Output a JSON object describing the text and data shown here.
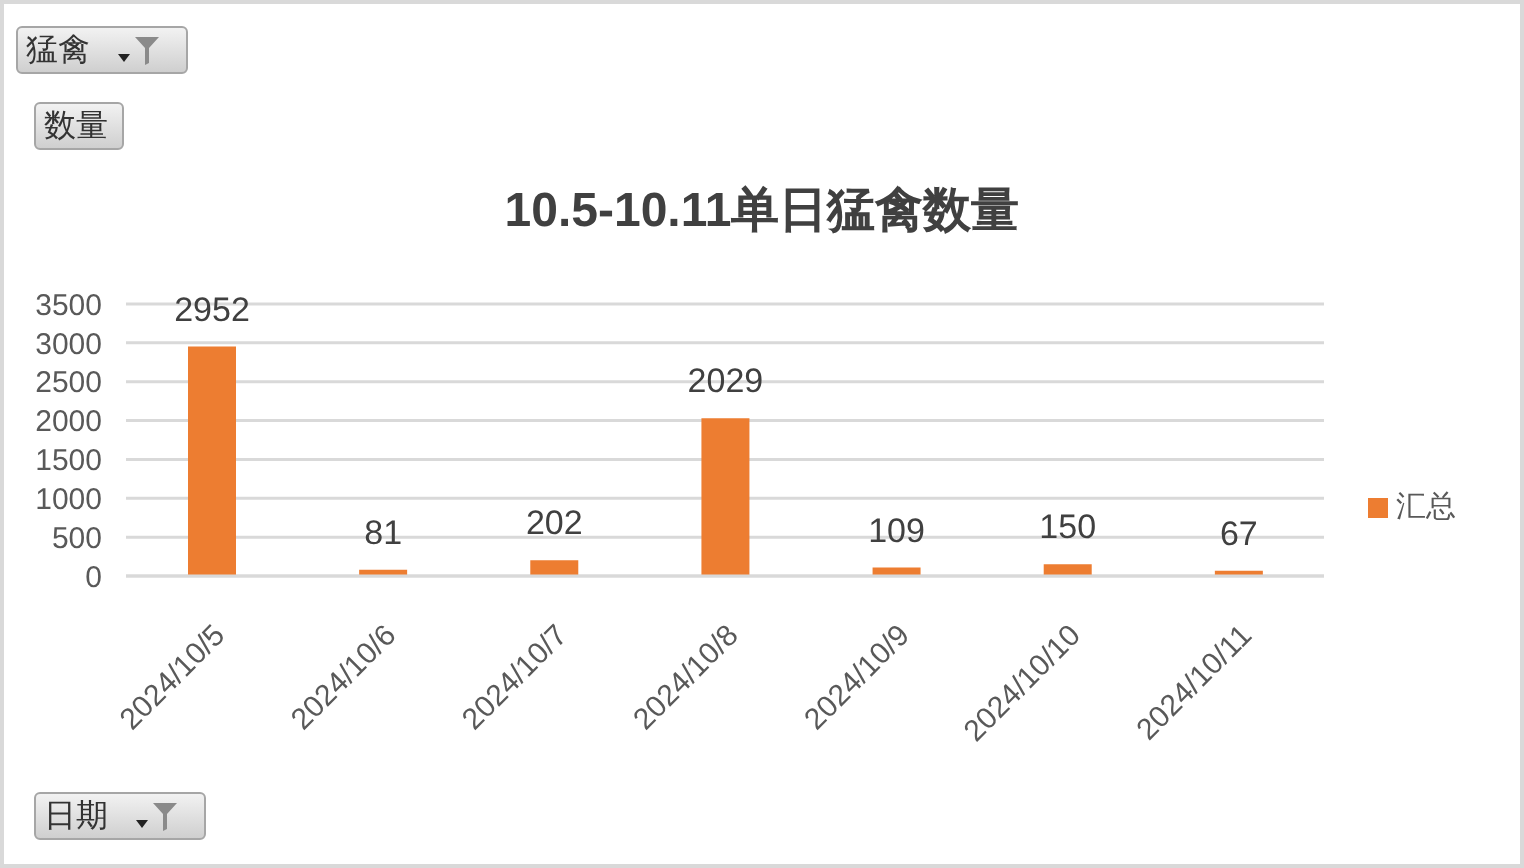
{
  "chart_data": {
    "type": "bar",
    "title": "10.5-10.11单日猛禽数量",
    "categories": [
      "2024/10/5",
      "2024/10/6",
      "2024/10/7",
      "2024/10/8",
      "2024/10/9",
      "2024/10/10",
      "2024/10/11"
    ],
    "series": [
      {
        "name": "汇总",
        "color": "#ed7d31",
        "values": [
          2952,
          81,
          202,
          2029,
          109,
          150,
          67
        ]
      }
    ],
    "ylim": [
      0,
      3500
    ],
    "yticks": [
      0,
      500,
      1000,
      1500,
      2000,
      2500,
      3000,
      3500
    ],
    "grid": "y",
    "legend": "right",
    "data_labels": true,
    "annotations": [
      "猛禽",
      "数量",
      "日期"
    ]
  }
}
